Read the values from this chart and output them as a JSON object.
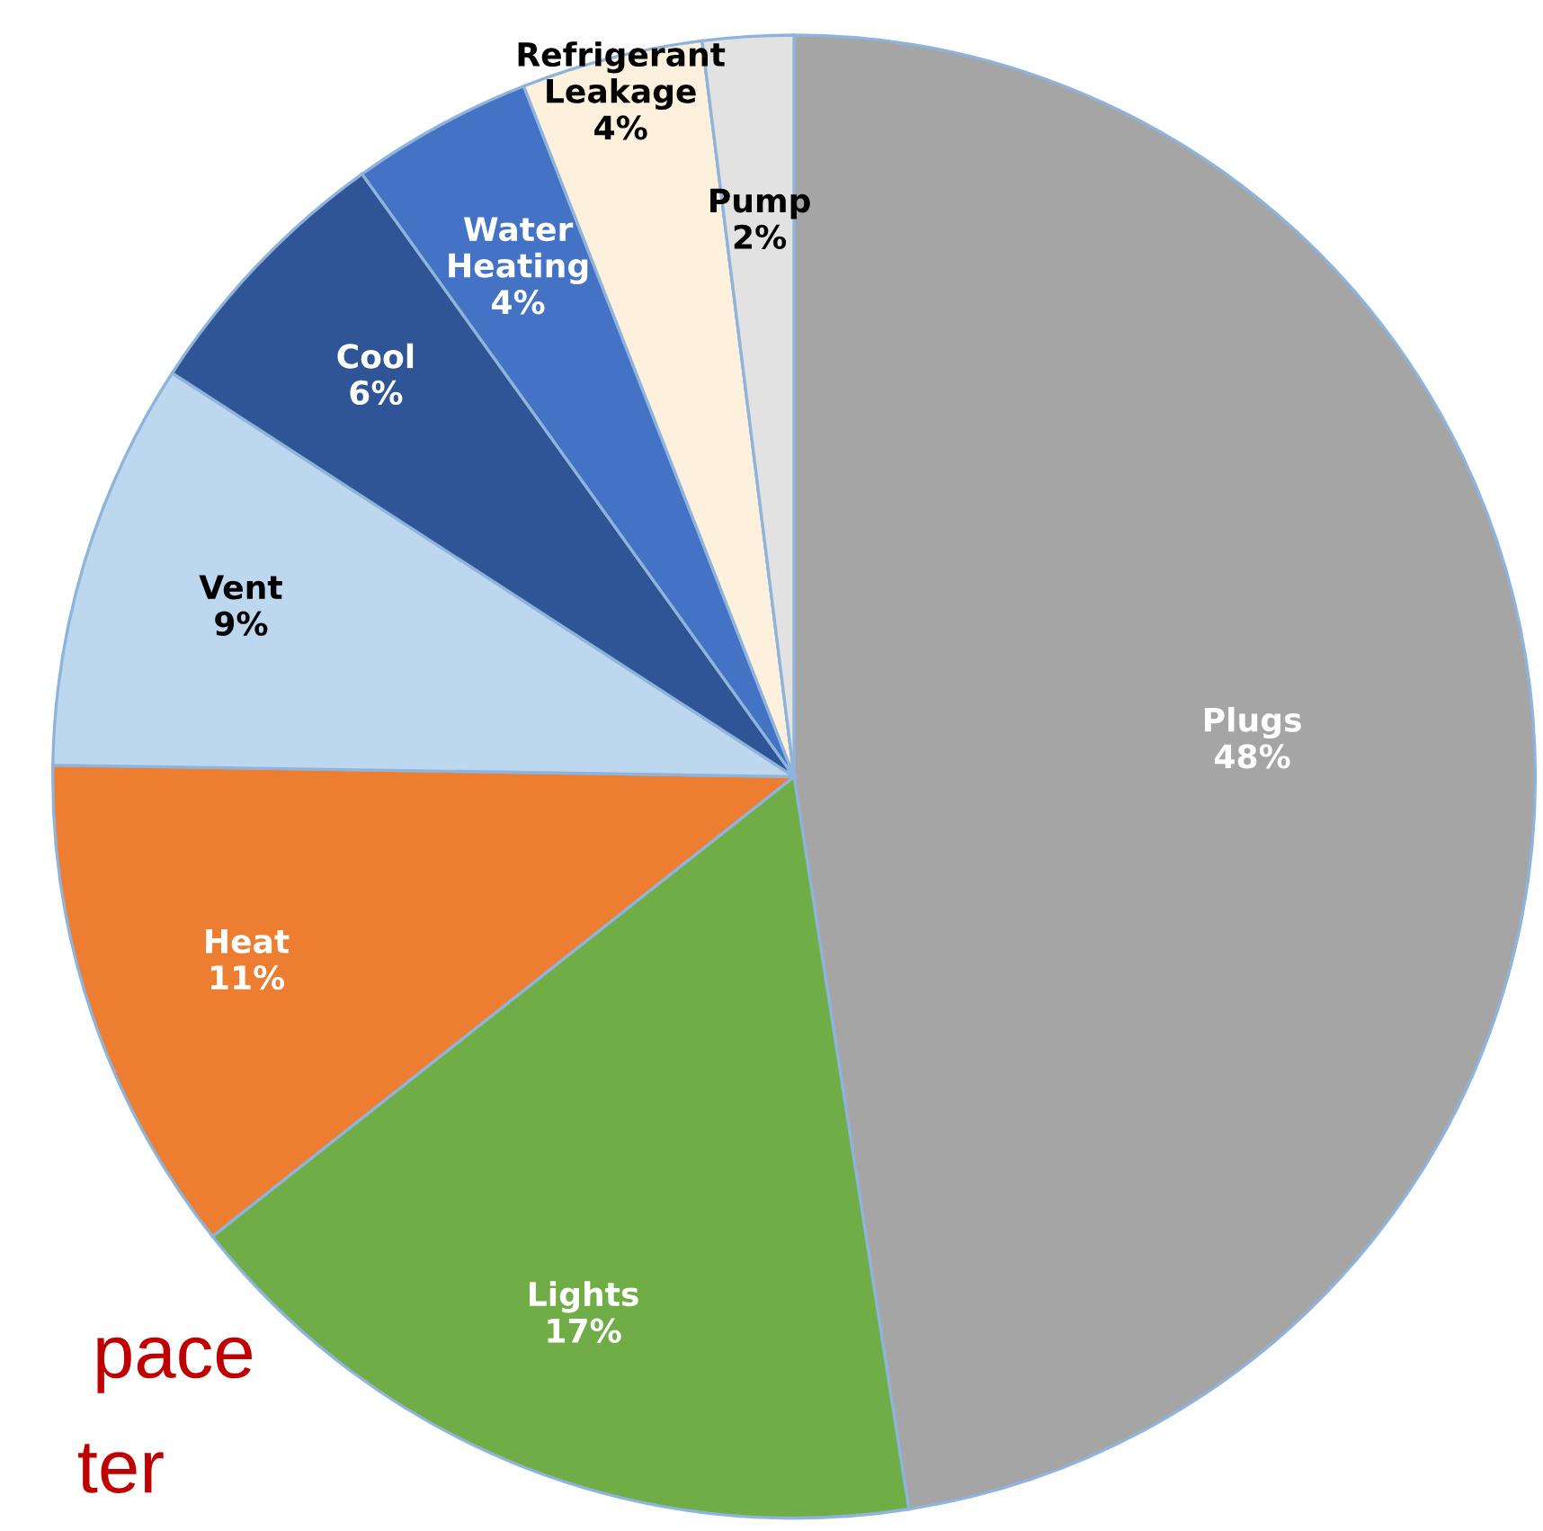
{
  "chart_data": {
    "type": "pie",
    "categories": [
      "Plugs",
      "Lights",
      "Heat",
      "Vent",
      "Cool",
      "Water Heating",
      "Refrigerant Leakage",
      "Pump"
    ],
    "values": [
      48,
      17,
      11,
      9,
      6,
      4,
      4,
      2
    ],
    "value_labels": [
      "48%",
      "17%",
      "11%",
      "9%",
      "6%",
      "4%",
      "4%",
      "2%"
    ],
    "colors": [
      "#a5a5a5",
      "#70ad47",
      "#ed7d31",
      "#bdd7ee",
      "#2f5597",
      "#4472c4",
      "#fdf0dc",
      "#e2e2e2"
    ],
    "annotations": [
      "pace",
      "ter"
    ],
    "legend": false
  }
}
